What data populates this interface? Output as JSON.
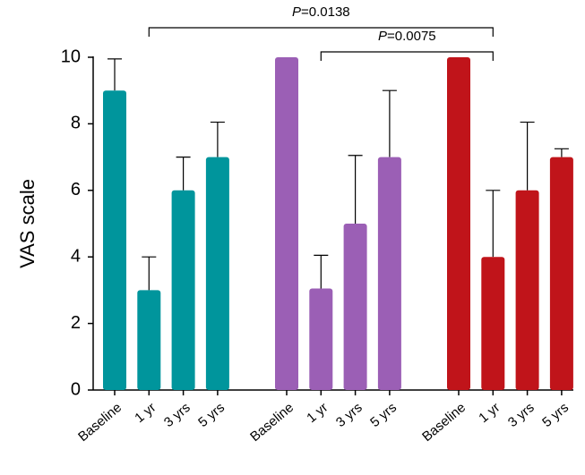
{
  "chart_data": {
    "type": "bar",
    "y_label": "VAS scale",
    "ylim": [
      0,
      10
    ],
    "yticks": [
      0,
      2,
      4,
      6,
      8,
      10
    ],
    "groups": [
      {
        "color": "#00959c",
        "categories": [
          "Baseline",
          "1 yr",
          "3 yrs",
          "5 yrs"
        ],
        "values": [
          9,
          3,
          6,
          7
        ],
        "errors": [
          0.95,
          1,
          1,
          1.05
        ]
      },
      {
        "color": "#9b5fb5",
        "categories": [
          "Baseline",
          "1 yr",
          "3 yrs",
          "5 yrs"
        ],
        "values": [
          10,
          3.05,
          5,
          7
        ],
        "errors": [
          null,
          1,
          2.05,
          2
        ]
      },
      {
        "color": "#c0141a",
        "categories": [
          "Baseline",
          "1 yr",
          "3 yrs",
          "5 yrs"
        ],
        "values": [
          10,
          4,
          6,
          7
        ],
        "errors": [
          null,
          2,
          2.05,
          0.25
        ]
      }
    ],
    "annotations": [
      {
        "italic": "P",
        "text": "=0.0138",
        "from": [
          0,
          1
        ],
        "to": [
          2,
          1
        ]
      },
      {
        "italic": "P",
        "text": "=0.0075",
        "from": [
          1,
          1
        ],
        "to": [
          2,
          1
        ]
      }
    ]
  }
}
